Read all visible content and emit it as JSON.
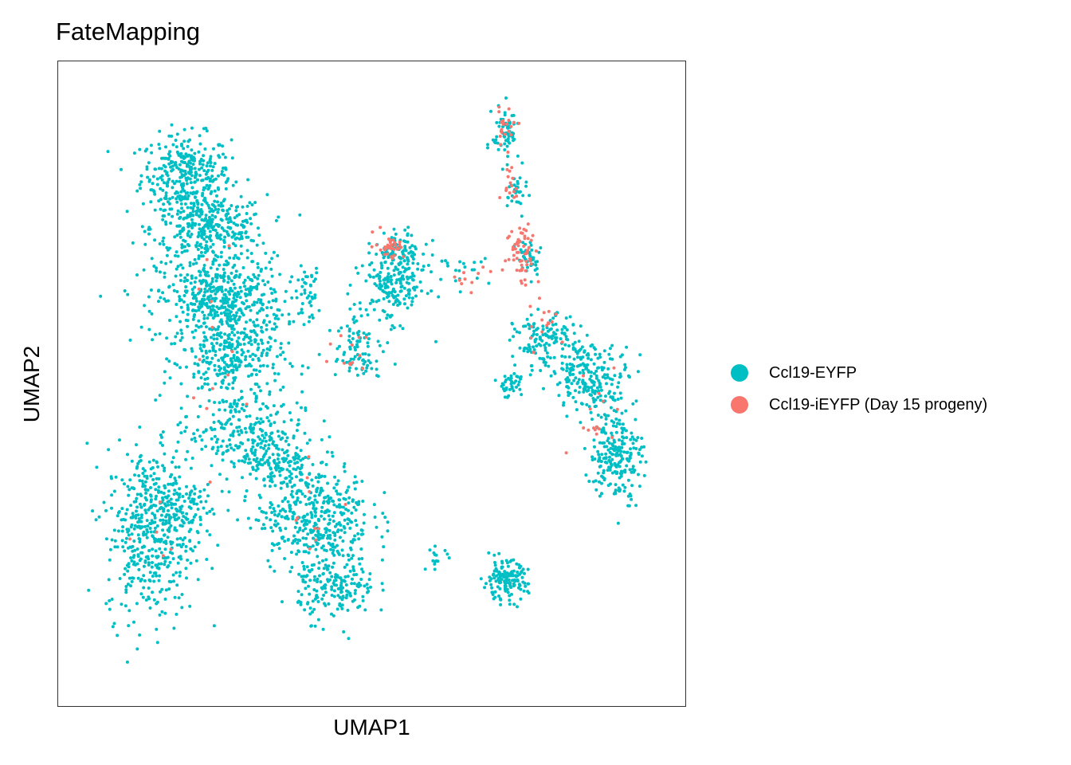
{
  "chart_data": {
    "type": "scatter",
    "title": "FateMapping",
    "xlabel": "UMAP1",
    "ylabel": "UMAP2",
    "xlim": [
      0,
      100
    ],
    "ylim": [
      0,
      100
    ],
    "grid": false,
    "legend_position": "right",
    "series": [
      {
        "name": "Ccl19-EYFP",
        "color": "#00BFC4",
        "clusters": [
          {
            "cx": 18,
            "cy": 85,
            "rx": 7,
            "ry": 6,
            "n": 320
          },
          {
            "cx": 22,
            "cy": 76,
            "rx": 9,
            "ry": 5,
            "n": 320
          },
          {
            "cx": 24,
            "cy": 64,
            "rx": 10,
            "ry": 7,
            "n": 520
          },
          {
            "cx": 26,
            "cy": 54,
            "rx": 8,
            "ry": 6,
            "n": 260
          },
          {
            "cx": 27,
            "cy": 42,
            "rx": 10,
            "ry": 6,
            "n": 240
          },
          {
            "cx": 12,
            "cy": 25,
            "rx": 7,
            "ry": 13,
            "n": 440
          },
          {
            "cx": 16,
            "cy": 30,
            "rx": 6,
            "ry": 5,
            "n": 120
          },
          {
            "cx": 40,
            "cy": 28,
            "rx": 9,
            "ry": 8,
            "n": 420
          },
          {
            "cx": 44,
            "cy": 16,
            "rx": 6,
            "ry": 5,
            "n": 180
          },
          {
            "cx": 34,
            "cy": 36,
            "rx": 6,
            "ry": 4,
            "n": 120
          },
          {
            "cx": 39,
            "cy": 65,
            "rx": 2,
            "ry": 4,
            "n": 40
          },
          {
            "cx": 47,
            "cy": 58,
            "rx": 4,
            "ry": 5,
            "n": 70
          },
          {
            "cx": 54,
            "cy": 67,
            "rx": 5,
            "ry": 6,
            "n": 220
          },
          {
            "cx": 55,
            "cy": 72,
            "rx": 3,
            "ry": 3,
            "n": 60
          },
          {
            "cx": 73,
            "cy": 92,
            "rx": 2,
            "ry": 4,
            "n": 70
          },
          {
            "cx": 75,
            "cy": 82,
            "rx": 1.5,
            "ry": 4,
            "n": 30
          },
          {
            "cx": 77,
            "cy": 71,
            "rx": 2,
            "ry": 3,
            "n": 40
          },
          {
            "cx": 80,
            "cy": 57,
            "rx": 5,
            "ry": 4,
            "n": 140
          },
          {
            "cx": 88,
            "cy": 51,
            "rx": 6,
            "ry": 5,
            "n": 210
          },
          {
            "cx": 92,
            "cy": 38,
            "rx": 4,
            "ry": 7,
            "n": 220
          },
          {
            "cx": 74,
            "cy": 50,
            "rx": 2.5,
            "ry": 2,
            "n": 40
          },
          {
            "cx": 73,
            "cy": 17,
            "rx": 3.5,
            "ry": 3,
            "n": 150
          },
          {
            "cx": 61,
            "cy": 21,
            "rx": 2,
            "ry": 1.5,
            "n": 15
          },
          {
            "cx": 66,
            "cy": 69,
            "rx": 4,
            "ry": 2,
            "n": 20
          },
          {
            "cx": 49,
            "cy": 53,
            "rx": 3,
            "ry": 2,
            "n": 20
          }
        ]
      },
      {
        "name": "Ccl19-iEYFP (Day 15 progeny)",
        "color": "#F8766D",
        "clusters": [
          {
            "cx": 73,
            "cy": 93,
            "rx": 2,
            "ry": 3,
            "n": 20
          },
          {
            "cx": 74,
            "cy": 84,
            "rx": 1.5,
            "ry": 3,
            "n": 15
          },
          {
            "cx": 76,
            "cy": 72,
            "rx": 2.5,
            "ry": 5,
            "n": 60
          },
          {
            "cx": 53,
            "cy": 73,
            "rx": 2.5,
            "ry": 2,
            "n": 35
          },
          {
            "cx": 67,
            "cy": 68,
            "rx": 3,
            "ry": 1.5,
            "n": 10
          },
          {
            "cx": 80,
            "cy": 60,
            "rx": 3,
            "ry": 5,
            "n": 15
          },
          {
            "cx": 88,
            "cy": 45,
            "rx": 5,
            "ry": 8,
            "n": 15
          },
          {
            "cx": 47,
            "cy": 56,
            "rx": 4,
            "ry": 5,
            "n": 12
          },
          {
            "cx": 24,
            "cy": 55,
            "rx": 8,
            "ry": 12,
            "n": 12
          },
          {
            "cx": 40,
            "cy": 28,
            "rx": 8,
            "ry": 8,
            "n": 10
          },
          {
            "cx": 14,
            "cy": 24,
            "rx": 6,
            "ry": 10,
            "n": 6
          }
        ]
      }
    ]
  }
}
